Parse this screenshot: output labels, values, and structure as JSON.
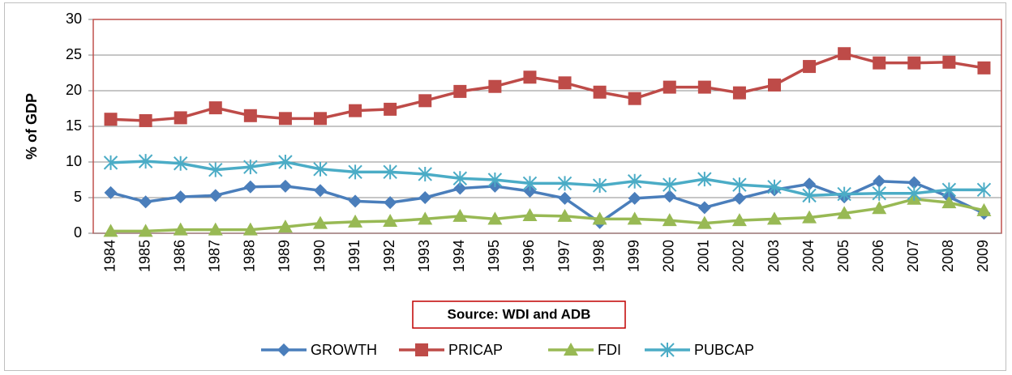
{
  "chart_data": {
    "type": "line",
    "y_label": "% of GDP",
    "source": "Source:  WDI and ADB",
    "categories": [
      "1984",
      "1985",
      "1986",
      "1987",
      "1988",
      "1989",
      "1990",
      "1991",
      "1992",
      "1993",
      "1994",
      "1995",
      "1996",
      "1997",
      "1998",
      "1999",
      "2000",
      "2001",
      "2002",
      "2003",
      "2004",
      "2005",
      "2006",
      "2007",
      "2008",
      "2009"
    ],
    "series": [
      {
        "name": "GROWTH",
        "color": "#4a7ebb",
        "marker": "diamond",
        "values": [
          5.7,
          4.4,
          5.1,
          5.3,
          6.5,
          6.6,
          6.0,
          4.5,
          4.3,
          5.0,
          6.3,
          6.6,
          5.9,
          4.9,
          1.5,
          4.9,
          5.2,
          3.6,
          4.9,
          6.1,
          6.9,
          5.1,
          7.3,
          7.1,
          5.1,
          2.8
        ]
      },
      {
        "name": "PRICAP",
        "color": "#be4b48",
        "marker": "square",
        "values": [
          16.0,
          15.8,
          16.2,
          17.6,
          16.5,
          16.1,
          16.1,
          17.2,
          17.4,
          18.6,
          19.9,
          20.6,
          21.9,
          21.1,
          19.8,
          18.9,
          20.5,
          20.5,
          19.7,
          20.8,
          23.4,
          25.2,
          23.9,
          23.9,
          24.0,
          23.2
        ]
      },
      {
        "name": "FDI",
        "color": "#98b954",
        "marker": "triangle",
        "values": [
          0.3,
          0.3,
          0.5,
          0.5,
          0.5,
          0.9,
          1.4,
          1.6,
          1.7,
          2.0,
          2.4,
          2.0,
          2.5,
          2.4,
          2.0,
          2.0,
          1.8,
          1.4,
          1.8,
          2.0,
          2.2,
          2.8,
          3.5,
          4.8,
          4.3,
          3.2
        ]
      },
      {
        "name": "PUBCAP",
        "color": "#4bacc6",
        "marker": "asterisk",
        "values": [
          9.9,
          10.1,
          9.8,
          8.9,
          9.3,
          10.0,
          9.0,
          8.6,
          8.6,
          8.3,
          7.7,
          7.5,
          7.0,
          7.0,
          6.7,
          7.3,
          6.8,
          7.6,
          6.8,
          6.5,
          5.3,
          5.5,
          5.6,
          5.6,
          6.1,
          6.1
        ]
      }
    ],
    "ylim": [
      0,
      30
    ],
    "yticks": [
      0,
      5,
      10,
      15,
      20,
      25,
      30
    ],
    "grid": true,
    "legend": "bottom"
  }
}
